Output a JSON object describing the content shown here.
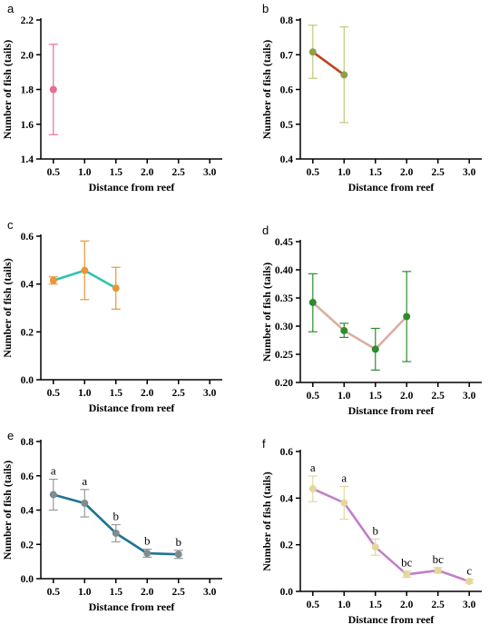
{
  "chart_data": [
    {
      "panel": "a",
      "type": "line",
      "xlabel": "Distance from reef",
      "ylabel": "Number of fish (tails)",
      "xlim": [
        0.3,
        3.2
      ],
      "xticks": [
        "0.5",
        "1.0",
        "1.5",
        "2.0",
        "2.5",
        "3.0"
      ],
      "ylim": [
        1.4,
        2.2
      ],
      "yticks": [
        "1.4",
        "1.6",
        "1.8",
        "2.0",
        "2.2"
      ],
      "line_color": "#e76f8f",
      "point_color": "#e76f8f",
      "error_color": "#e76f8f",
      "points": [
        {
          "x": 0.5,
          "y": 1.8,
          "err_low": 1.54,
          "err_high": 2.06,
          "sig": ""
        }
      ]
    },
    {
      "panel": "b",
      "type": "line",
      "xlabel": "Distance from reef",
      "ylabel": "Number of fish (tails)",
      "xlim": [
        0.3,
        3.2
      ],
      "xticks": [
        "0.5",
        "1.0",
        "1.5",
        "2.0",
        "2.5",
        "3.0"
      ],
      "ylim": [
        0.4,
        0.8
      ],
      "yticks": [
        "0.4",
        "0.5",
        "0.6",
        "0.7",
        "0.8"
      ],
      "line_color": "#c1441a",
      "point_color": "#8fa047",
      "error_color": "#c3c77a",
      "points": [
        {
          "x": 0.5,
          "y": 0.708,
          "err_low": 0.632,
          "err_high": 0.785,
          "sig": ""
        },
        {
          "x": 1.0,
          "y": 0.642,
          "err_low": 0.505,
          "err_high": 0.78,
          "sig": ""
        }
      ]
    },
    {
      "panel": "c",
      "type": "line",
      "xlabel": "Distance from reef",
      "ylabel": "Number of fish (tails)",
      "xlim": [
        0.3,
        3.2
      ],
      "xticks": [
        "0.5",
        "1.0",
        "1.5",
        "2.0",
        "2.5",
        "3.0"
      ],
      "ylim": [
        0.0,
        0.6
      ],
      "yticks": [
        "0.0",
        "0.2",
        "0.4",
        "0.6"
      ],
      "line_color": "#2ec4b0",
      "point_color": "#e8963a",
      "error_color": "#e8963a",
      "points": [
        {
          "x": 0.5,
          "y": 0.415,
          "err_low": 0.4,
          "err_high": 0.43,
          "sig": ""
        },
        {
          "x": 1.0,
          "y": 0.457,
          "err_low": 0.335,
          "err_high": 0.58,
          "sig": ""
        },
        {
          "x": 1.5,
          "y": 0.383,
          "err_low": 0.295,
          "err_high": 0.47,
          "sig": ""
        }
      ]
    },
    {
      "panel": "d",
      "type": "line",
      "xlabel": "Distance from reef",
      "ylabel": "Number of fish (tails)",
      "xlim": [
        0.3,
        3.2
      ],
      "xticks": [
        "0.5",
        "1.0",
        "1.5",
        "2.0",
        "2.5",
        "3.0"
      ],
      "ylim": [
        0.2,
        0.45
      ],
      "yticks": [
        "0.20",
        "0.25",
        "0.30",
        "0.35",
        "0.40",
        "0.45"
      ],
      "line_color": "#d9b0a0",
      "point_color": "#2e8b2e",
      "error_color": "#2e8b2e",
      "points": [
        {
          "x": 0.5,
          "y": 0.342,
          "err_low": 0.29,
          "err_high": 0.393,
          "sig": ""
        },
        {
          "x": 1.0,
          "y": 0.292,
          "err_low": 0.28,
          "err_high": 0.305,
          "sig": ""
        },
        {
          "x": 1.5,
          "y": 0.259,
          "err_low": 0.222,
          "err_high": 0.296,
          "sig": ""
        },
        {
          "x": 2.0,
          "y": 0.317,
          "err_low": 0.237,
          "err_high": 0.397,
          "sig": ""
        }
      ]
    },
    {
      "panel": "e",
      "type": "line",
      "xlabel": "Distance from reef",
      "ylabel": "Number of fish (tails)",
      "xlim": [
        0.3,
        3.2
      ],
      "xticks": [
        "0.5",
        "1.0",
        "1.5",
        "2.0",
        "2.5",
        "3.0"
      ],
      "ylim": [
        0.0,
        0.8
      ],
      "yticks": [
        "0.0",
        "0.2",
        "0.4",
        "0.6",
        "0.8"
      ],
      "line_color": "#1f7394",
      "point_color": "#7f8c8d",
      "error_color": "#999999",
      "points": [
        {
          "x": 0.5,
          "y": 0.49,
          "err_low": 0.4,
          "err_high": 0.58,
          "sig": "a"
        },
        {
          "x": 1.0,
          "y": 0.44,
          "err_low": 0.36,
          "err_high": 0.52,
          "sig": "a"
        },
        {
          "x": 1.5,
          "y": 0.265,
          "err_low": 0.215,
          "err_high": 0.315,
          "sig": "b"
        },
        {
          "x": 2.0,
          "y": 0.148,
          "err_low": 0.125,
          "err_high": 0.172,
          "sig": "b"
        },
        {
          "x": 2.5,
          "y": 0.142,
          "err_low": 0.118,
          "err_high": 0.165,
          "sig": "b"
        }
      ]
    },
    {
      "panel": "f",
      "type": "line",
      "xlabel": "Distance from reef",
      "ylabel": "Number of fish (tails)",
      "xlim": [
        0.3,
        3.2
      ],
      "xticks": [
        "0.5",
        "1.0",
        "1.5",
        "2.0",
        "2.5",
        "3.0"
      ],
      "ylim": [
        0.0,
        0.6
      ],
      "yticks": [
        "0.0",
        "0.2",
        "0.4",
        "0.6"
      ],
      "line_color": "#c080c8",
      "point_color": "#e2d89c",
      "error_color": "#e2d89c",
      "points": [
        {
          "x": 0.5,
          "y": 0.44,
          "err_low": 0.385,
          "err_high": 0.495,
          "sig": "a"
        },
        {
          "x": 1.0,
          "y": 0.38,
          "err_low": 0.31,
          "err_high": 0.45,
          "sig": "a"
        },
        {
          "x": 1.5,
          "y": 0.19,
          "err_low": 0.155,
          "err_high": 0.225,
          "sig": "b"
        },
        {
          "x": 2.0,
          "y": 0.073,
          "err_low": 0.06,
          "err_high": 0.087,
          "sig": "bc"
        },
        {
          "x": 2.5,
          "y": 0.09,
          "err_low": 0.078,
          "err_high": 0.102,
          "sig": "bc"
        },
        {
          "x": 3.0,
          "y": 0.043,
          "err_low": 0.035,
          "err_high": 0.052,
          "sig": "c"
        }
      ]
    }
  ]
}
